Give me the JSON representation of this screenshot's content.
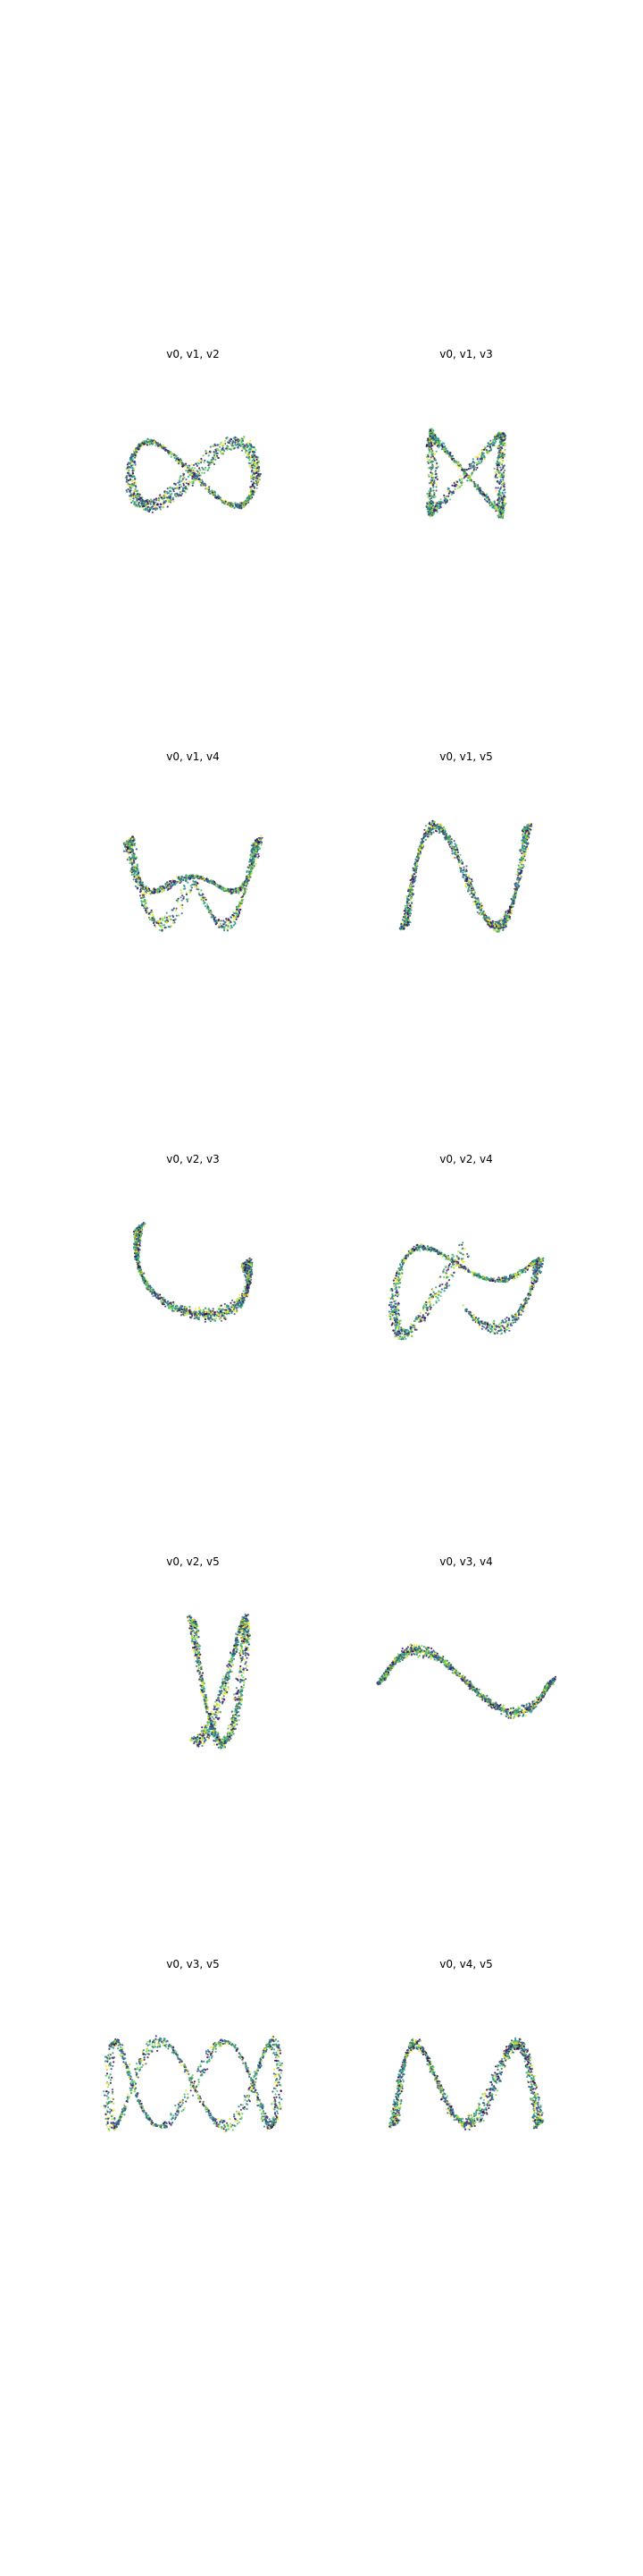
{
  "chart_data": [
    {
      "type": "scatter",
      "title": "v0, v1, v2",
      "axes": [
        "v0",
        "v1",
        "v2"
      ],
      "projection": "3d",
      "axis_visible": false,
      "grid": false,
      "colormap": "viridis",
      "curve": "sine-band"
    },
    {
      "type": "scatter",
      "title": "v0, v1, v3",
      "axes": [
        "v0",
        "v1",
        "v3"
      ],
      "projection": "3d",
      "axis_visible": false,
      "grid": false,
      "colormap": "viridis",
      "curve": "figure-eight-loops"
    },
    {
      "type": "scatter",
      "title": "v0, v1, v4",
      "axes": [
        "v0",
        "v1",
        "v4"
      ],
      "projection": "3d",
      "axis_visible": false,
      "grid": false,
      "colormap": "viridis",
      "curve": "double-wave"
    },
    {
      "type": "scatter",
      "title": "v0, v1, v5",
      "axes": [
        "v0",
        "v1",
        "v5"
      ],
      "projection": "3d",
      "axis_visible": false,
      "grid": false,
      "colormap": "viridis",
      "curve": "double-wave-loops"
    },
    {
      "type": "scatter",
      "title": "v0, v2, v3",
      "axes": [
        "v0",
        "v2",
        "v3"
      ],
      "projection": "3d",
      "axis_visible": false,
      "grid": false,
      "colormap": "viridis",
      "curve": "interlocked-rings"
    },
    {
      "type": "scatter",
      "title": "v0, v2, v4",
      "axes": [
        "v0",
        "v2",
        "v4"
      ],
      "projection": "3d",
      "axis_visible": false,
      "grid": false,
      "colormap": "viridis",
      "curve": "twisted-band"
    },
    {
      "type": "scatter",
      "title": "v0, v2, v5",
      "axes": [
        "v0",
        "v2",
        "v5"
      ],
      "projection": "3d",
      "axis_visible": false,
      "grid": false,
      "colormap": "viridis",
      "curve": "tall-loops"
    },
    {
      "type": "scatter",
      "title": "v0, v3, v4",
      "axes": [
        "v0",
        "v3",
        "v4"
      ],
      "projection": "3d",
      "axis_visible": false,
      "grid": false,
      "colormap": "viridis",
      "curve": "bowtie"
    },
    {
      "type": "scatter",
      "title": "v0, v3, v5",
      "axes": [
        "v0",
        "v3",
        "v5"
      ],
      "projection": "3d",
      "axis_visible": false,
      "grid": false,
      "colormap": "viridis",
      "curve": "chain-loops"
    },
    {
      "type": "scatter",
      "title": "v0, v4, v5",
      "axes": [
        "v0",
        "v4",
        "v5"
      ],
      "projection": "3d",
      "axis_visible": false,
      "grid": false,
      "colormap": "viridis",
      "curve": "coil-loops"
    }
  ],
  "colors": {
    "background": "#ffffff",
    "title": "#000000",
    "palette": [
      "#440154",
      "#482878",
      "#3e4989",
      "#31688e",
      "#26828e",
      "#1f9e89",
      "#35b779",
      "#6ece58",
      "#b5de2b",
      "#fde725"
    ]
  }
}
